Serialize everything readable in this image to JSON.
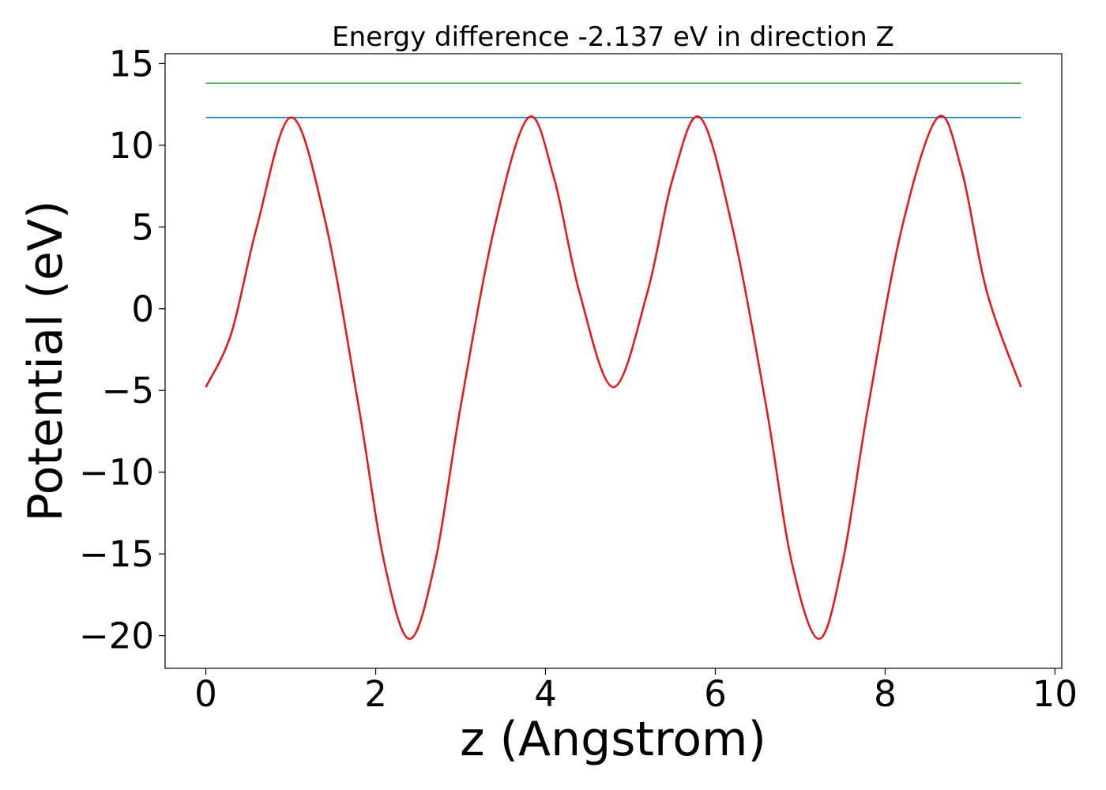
{
  "chart_data": {
    "type": "line",
    "title": "Energy difference -2.137 eV in direction Z",
    "xlabel": "z (Angstrom)",
    "ylabel": "Potential (eV)",
    "xlim": [
      -0.48,
      10.08
    ],
    "ylim": [
      -22.0,
      15.6
    ],
    "x_ticks": [
      0,
      2,
      4,
      6,
      8,
      10
    ],
    "y_ticks": [
      -20,
      -15,
      -10,
      -5,
      0,
      5,
      10,
      15
    ],
    "x_tick_labels": [
      "0",
      "2",
      "4",
      "6",
      "8",
      "10"
    ],
    "y_tick_labels": [
      "−20",
      "−15",
      "−10",
      "−5",
      "0",
      "5",
      "10",
      "15"
    ],
    "grid": false,
    "series": [
      {
        "color": "#1f77b4",
        "x": [
          0.0,
          9.6
        ],
        "y": [
          11.7,
          11.7
        ]
      },
      {
        "color": "#2ca02c",
        "x": [
          0.0,
          9.6
        ],
        "y": [
          13.8,
          13.8
        ]
      },
      {
        "color": "#e41a1c",
        "x": [
          0.0,
          0.3,
          0.6,
          1.0,
          1.4,
          1.8,
          2.1,
          2.4,
          2.7,
          3.0,
          3.4,
          3.8,
          4.1,
          4.4,
          4.8,
          5.2,
          5.5,
          5.82,
          6.2,
          6.6,
          6.9,
          7.22,
          7.5,
          7.8,
          8.2,
          8.62,
          8.9,
          9.2,
          9.6
        ],
        "y": [
          -4.8,
          -1.5,
          5.0,
          11.7,
          5.5,
          -6.0,
          -15.5,
          -20.2,
          -15.5,
          -6.0,
          5.0,
          11.7,
          8.0,
          1.0,
          -4.8,
          1.0,
          8.0,
          11.7,
          5.0,
          -6.0,
          -15.5,
          -20.2,
          -15.5,
          -6.0,
          5.0,
          11.7,
          8.5,
          1.0,
          -4.8
        ]
      }
    ]
  }
}
